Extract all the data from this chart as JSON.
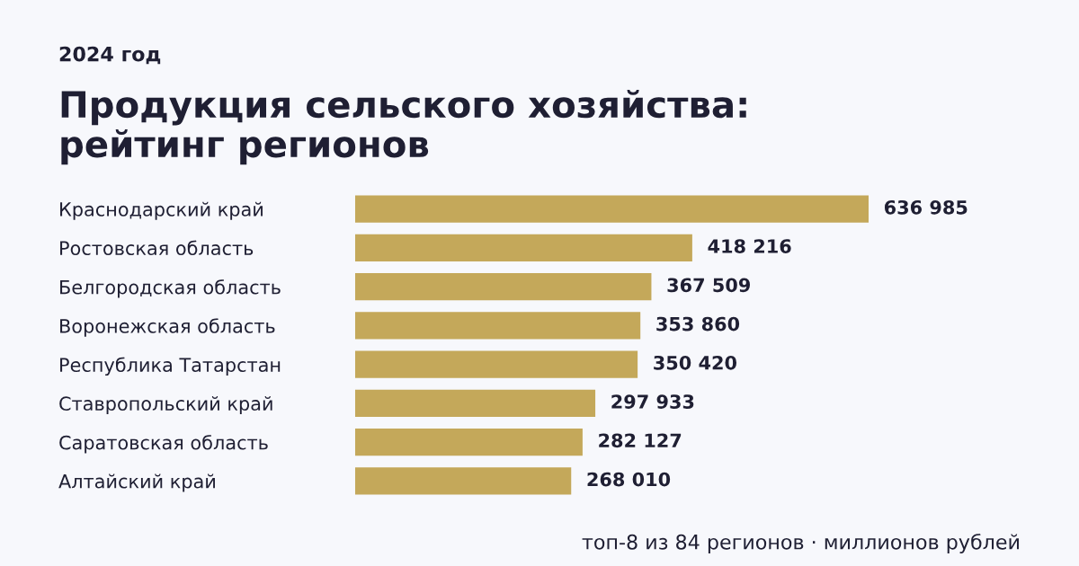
{
  "chart_data": {
    "type": "bar",
    "orientation": "horizontal",
    "title": "Продукция сельского хозяйства: рейтинг регионов",
    "subtitle": "2024 год",
    "categories": [
      "Краснодарский край",
      "Ростовская область",
      "Белгородская область",
      "Воронежская область",
      "Республика Татарстан",
      "Ставропольский край",
      "Саратовская область",
      "Алтайский край"
    ],
    "values": [
      636985,
      418216,
      367509,
      353860,
      350420,
      297933,
      282127,
      268010
    ],
    "value_labels": [
      "636 985",
      "418 216",
      "367 509",
      "353 860",
      "350 420",
      "297 933",
      "282 127",
      "268 010"
    ],
    "color": "#c4a85a",
    "grid": false,
    "legend": false,
    "annotations": [
      "топ-8 из 84 регионов · миллионов рублей"
    ]
  }
}
